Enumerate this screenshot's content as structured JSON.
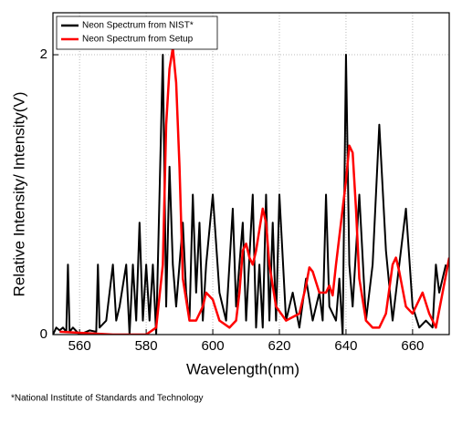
{
  "chart_data": {
    "type": "line",
    "x_label": "Wavelength(nm)",
    "y_label": "Relative Intensity/ Intensity(V)",
    "annotation": "*National Institute of Standards and Technology",
    "xlim": [
      552,
      671
    ],
    "xticks": [
      560,
      580,
      600,
      620,
      640,
      660
    ],
    "ylim": [
      0,
      2.3
    ],
    "yticks": [
      0,
      2
    ],
    "grid": true,
    "legend": "upper left",
    "series": [
      {
        "name": "Neon Spectrum from NIST*",
        "color": "#000000",
        "x": [
          552,
          553,
          554,
          555,
          556,
          556.5,
          557,
          558,
          560,
          563,
          565,
          565.5,
          566,
          568,
          570,
          571,
          572,
          574,
          575,
          576,
          577,
          578,
          579,
          580,
          581,
          582,
          583,
          584,
          585,
          586,
          587,
          588,
          589,
          590,
          591,
          592,
          593,
          594,
          595,
          596,
          597,
          598,
          600,
          602,
          604,
          606,
          607,
          609,
          610,
          612,
          613,
          614,
          615,
          616,
          617,
          618,
          619,
          620,
          622,
          624,
          626,
          628,
          630,
          632,
          633,
          634,
          635,
          637,
          638,
          639,
          640,
          641,
          642,
          644,
          646,
          648,
          650,
          652,
          654,
          656,
          658,
          660,
          662,
          664,
          666,
          667,
          668,
          670
        ],
        "values": [
          0,
          0.05,
          0.03,
          0.05,
          0.02,
          0.5,
          0.02,
          0.05,
          0,
          0.03,
          0.02,
          0.5,
          0.05,
          0.1,
          0.5,
          0.1,
          0.2,
          0.5,
          0,
          0.5,
          0.1,
          0.8,
          0.1,
          0.5,
          0.1,
          0.5,
          0,
          1.0,
          2.0,
          0.2,
          1.2,
          0.5,
          0.2,
          0.5,
          0.8,
          0.3,
          0.1,
          1.0,
          0.3,
          0.8,
          0.1,
          0.5,
          1.0,
          0.3,
          0.1,
          0.9,
          0.2,
          0.8,
          0.1,
          1.0,
          0.05,
          0.5,
          0.05,
          1.0,
          0.1,
          0.8,
          0.1,
          1.0,
          0.1,
          0.3,
          0.05,
          0.4,
          0.1,
          0.3,
          0.1,
          1.0,
          0.2,
          0.1,
          0.4,
          0,
          2.0,
          0.5,
          0.2,
          1.0,
          0.1,
          0.5,
          1.5,
          0.6,
          0.1,
          0.5,
          0.9,
          0.2,
          0.05,
          0.1,
          0.05,
          0.5,
          0.3,
          0.5
        ]
      },
      {
        "name": "Neon Spectrum from Setup",
        "color": "#ff0000",
        "x": [
          554,
          570,
          580,
          583,
          585,
          586,
          587,
          588,
          589,
          590,
          591,
          593,
          595,
          597,
          598,
          600,
          602,
          605,
          607,
          608,
          609,
          610,
          611,
          612,
          613,
          614,
          615,
          616,
          617,
          619,
          622,
          626,
          628,
          629,
          630,
          632,
          634,
          635,
          636,
          637,
          638,
          639,
          640,
          641,
          642,
          643,
          644,
          646,
          648,
          650,
          652,
          654,
          655,
          656,
          658,
          660,
          662,
          663,
          665,
          667,
          669,
          671
        ],
        "values": [
          0.02,
          0,
          0,
          0.05,
          0.5,
          1.5,
          1.9,
          2.05,
          1.8,
          1.2,
          0.4,
          0.1,
          0.1,
          0.2,
          0.3,
          0.25,
          0.1,
          0.05,
          0.1,
          0.3,
          0.6,
          0.65,
          0.55,
          0.5,
          0.6,
          0.75,
          0.9,
          0.8,
          0.5,
          0.2,
          0.1,
          0.15,
          0.35,
          0.48,
          0.45,
          0.3,
          0.3,
          0.35,
          0.28,
          0.5,
          0.7,
          0.9,
          1.1,
          1.35,
          1.3,
          0.9,
          0.4,
          0.1,
          0.05,
          0.05,
          0.15,
          0.5,
          0.55,
          0.45,
          0.2,
          0.15,
          0.25,
          0.3,
          0.15,
          0.05,
          0.3,
          0.55
        ]
      }
    ]
  }
}
